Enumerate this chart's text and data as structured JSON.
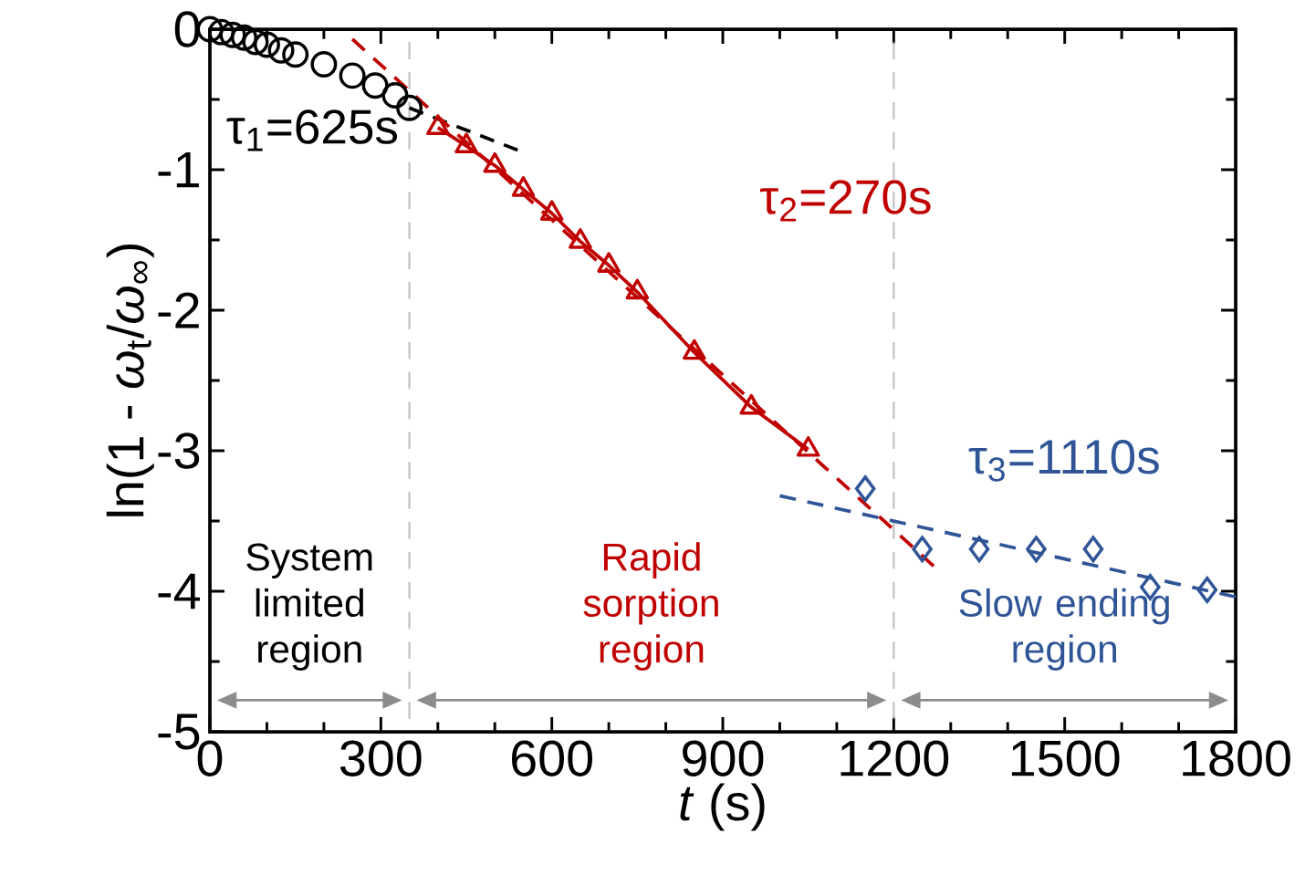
{
  "chart_data": {
    "type": "scatter",
    "xlabel": "*t* (s)",
    "ylabel": "ln(1 - *ω*$_{t}$/*ω*$_{∞}$)",
    "xlim": [
      0,
      1800
    ],
    "xticks": [
      0,
      300,
      600,
      900,
      1200,
      1500,
      1800
    ],
    "ylim": [
      -5,
      0
    ],
    "yticks": [
      -5,
      -4,
      -3,
      -2,
      -1,
      0
    ],
    "legend": false,
    "grid": false,
    "series": [
      {
        "marker": "circle",
        "color": "#000000",
        "x": [
          0,
          20,
          40,
          60,
          80,
          100,
          125,
          150,
          200,
          250,
          290,
          325,
          350
        ],
        "values": [
          0,
          -0.02,
          -0.04,
          -0.06,
          -0.09,
          -0.11,
          -0.15,
          -0.18,
          -0.25,
          -0.33,
          -0.4,
          -0.47,
          -0.56
        ]
      },
      {
        "type": "line",
        "marker": "triangle",
        "line_style": "solid",
        "color": "#c00000",
        "x": [
          400,
          450,
          500,
          550,
          600,
          650,
          700,
          750,
          850,
          950,
          1050
        ],
        "values": [
          -0.7,
          -0.83,
          -0.97,
          -1.14,
          -1.31,
          -1.51,
          -1.68,
          -1.87,
          -2.3,
          -2.69,
          -2.99
        ]
      },
      {
        "marker": "diamond",
        "color": "#2f5597",
        "x": [
          1150,
          1250,
          1350,
          1450,
          1550,
          1650,
          1750
        ],
        "values": [
          -3.27,
          -3.7,
          -3.7,
          -3.7,
          -3.7,
          -3.97,
          -3.99
        ]
      },
      {
        "type": "line",
        "marker": "none",
        "line_style": "dashed",
        "color": "#000000",
        "x": [
          350,
          540
        ],
        "values": [
          -0.56,
          -0.86
        ]
      },
      {
        "type": "line",
        "marker": "none",
        "line_style": "dashed",
        "color": "#c00000",
        "x": [
          250,
          1270
        ],
        "values": [
          -0.07,
          -3.82
        ]
      },
      {
        "type": "line",
        "marker": "none",
        "line_style": "dashed",
        "color": "#2f5597",
        "x": [
          1000,
          1800
        ],
        "values": [
          -3.32,
          -4.04
        ]
      }
    ],
    "ref_lines": [
      {
        "axis": "x",
        "value": 350,
        "color": "#bfbfbf",
        "line_style": "dashed"
      },
      {
        "axis": "x",
        "value": 1200,
        "color": "#bfbfbf",
        "line_style": "dashed"
      }
    ],
    "annotations": [
      "τ$_{1}$=625s",
      "τ$_{2}$=270s",
      "τ$_{3}$=1110s",
      "System limited region",
      "Rapid sorption region",
      "Slow ending region"
    ]
  }
}
